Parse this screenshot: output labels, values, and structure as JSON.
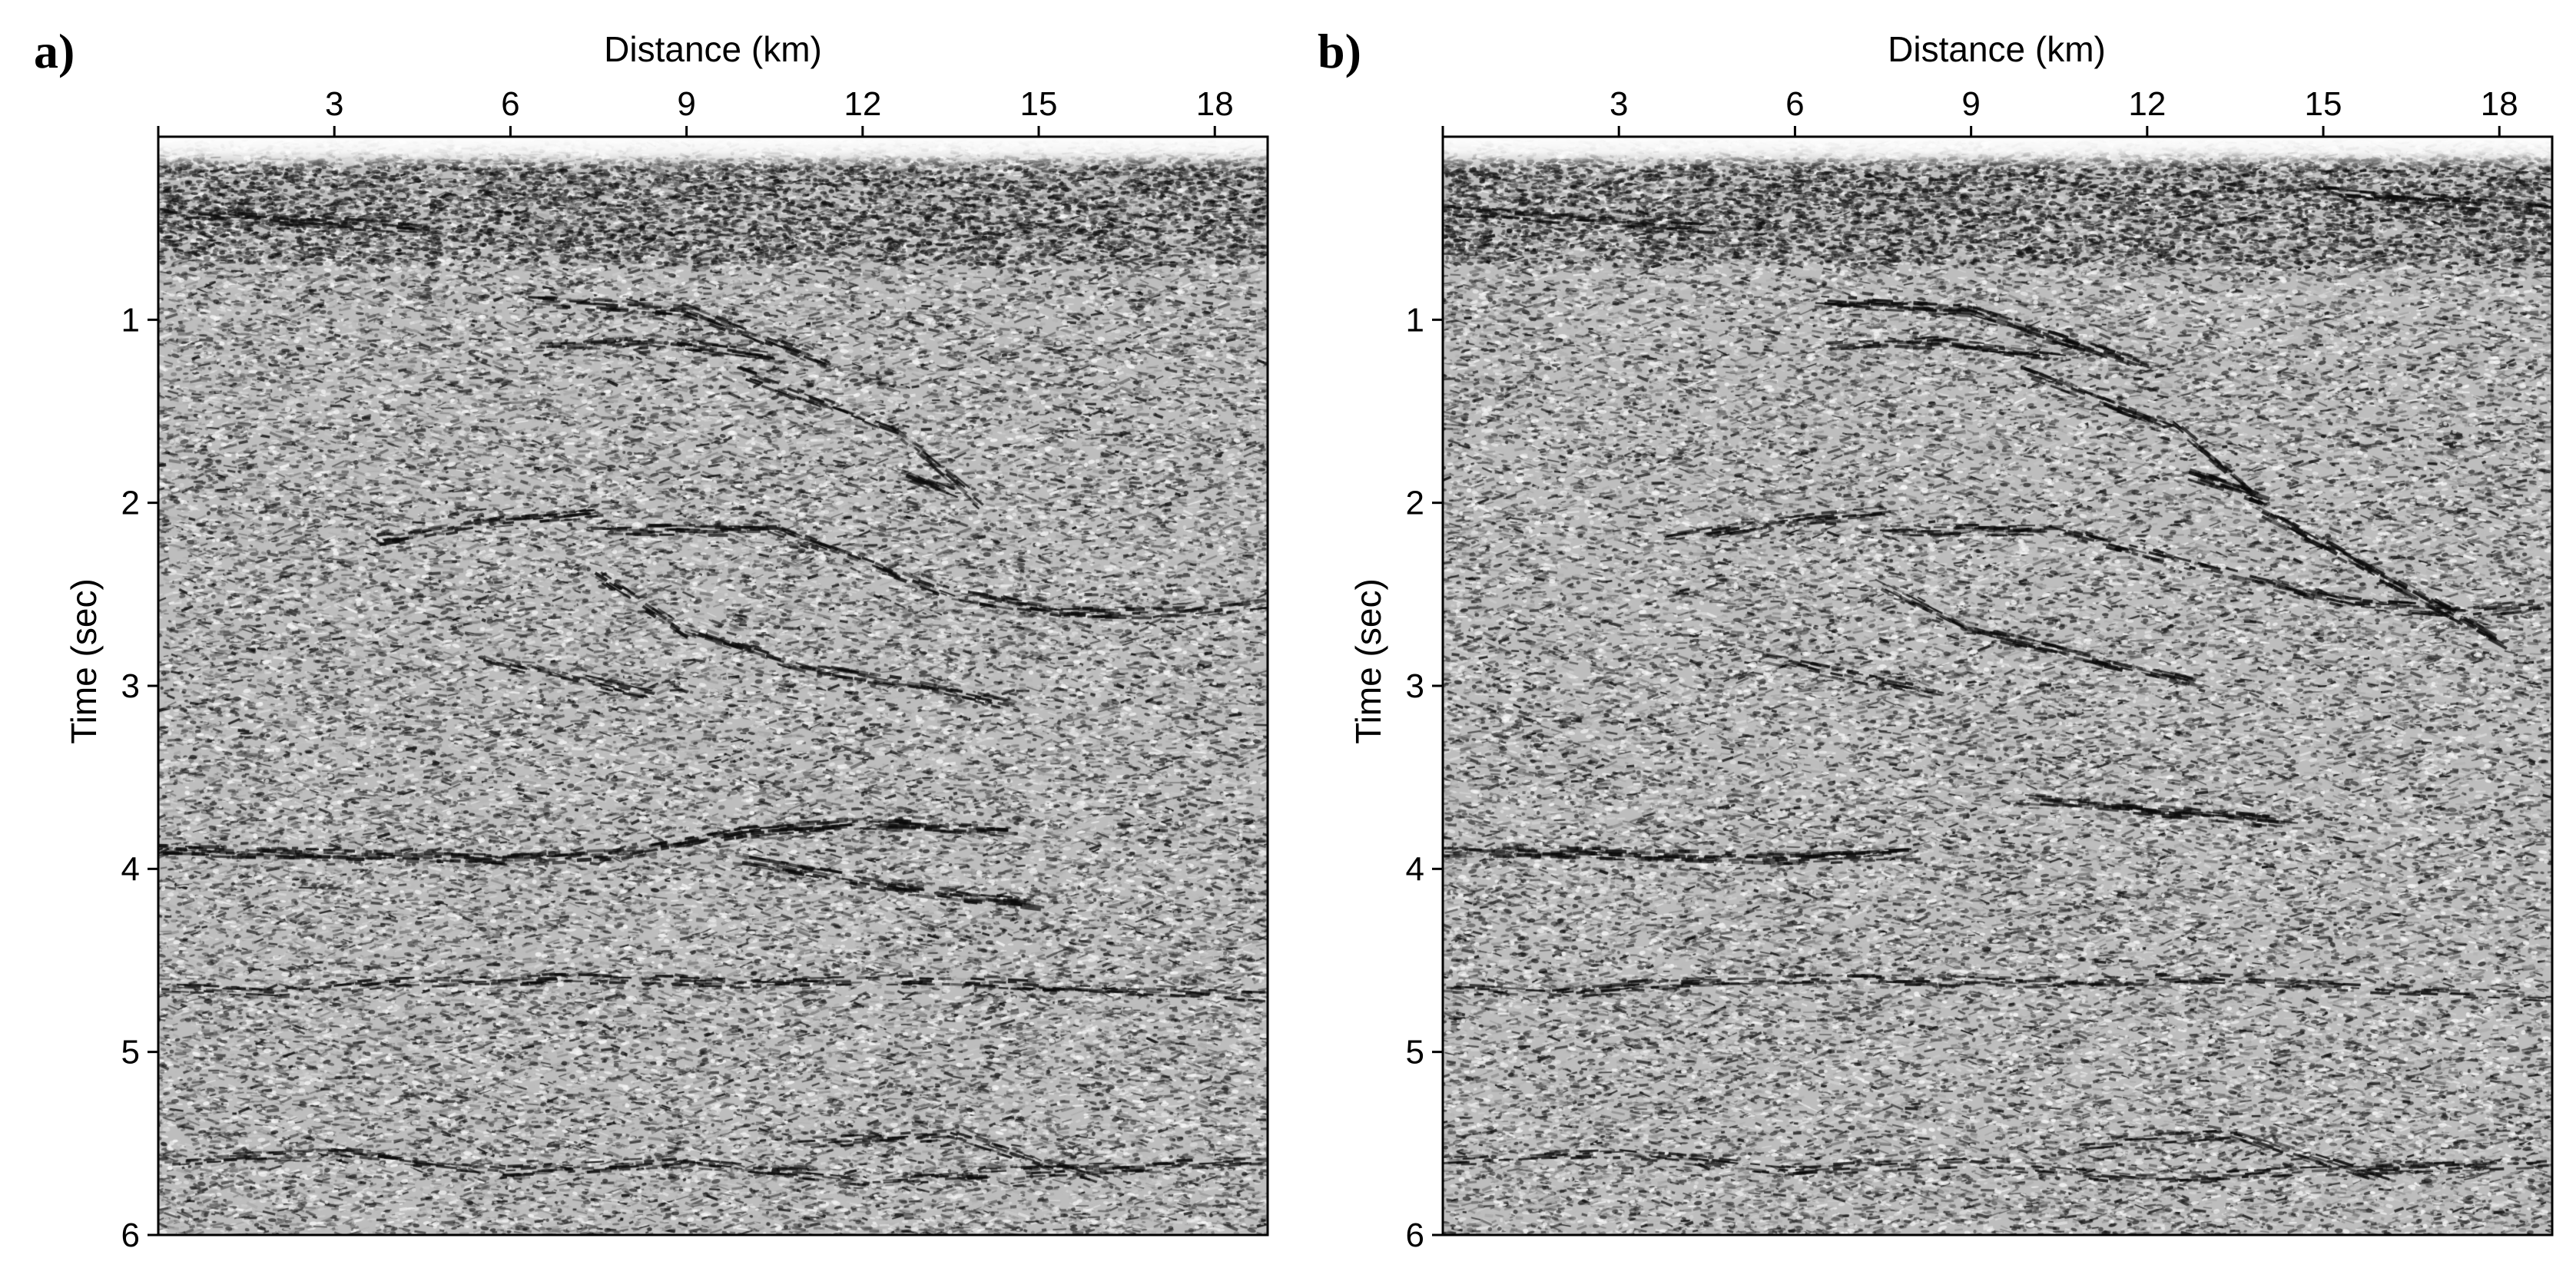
{
  "chart_data": [
    {
      "type": "heatmap",
      "panel_label": "a)",
      "xlabel": "Distance (km)",
      "ylabel": "Time (sec)",
      "x_axis_position": "top",
      "xlim": [
        0,
        18.9
      ],
      "ylim": [
        0,
        6
      ],
      "y_inverted": true,
      "x_ticks": [
        3,
        6,
        9,
        12,
        15,
        18
      ],
      "y_ticks": [
        1,
        2,
        3,
        4,
        5,
        6
      ],
      "colormap": "grayscale",
      "grid": false,
      "noise_seed": 17,
      "reflectors": [
        {
          "x": [
            6.5,
            9.0,
            11.5
          ],
          "t": [
            0.9,
            0.95,
            1.25
          ],
          "strength": 0.9
        },
        {
          "x": [
            6.5,
            8.5,
            10.5
          ],
          "t": [
            1.15,
            1.12,
            1.2
          ],
          "strength": 0.8
        },
        {
          "x": [
            10.0,
            12.5,
            14.0
          ],
          "t": [
            1.3,
            1.6,
            2.0
          ],
          "strength": 0.7
        },
        {
          "x": [
            12.8,
            13.6
          ],
          "t": [
            1.85,
            1.95
          ],
          "strength": 1.3
        },
        {
          "x": [
            7.5,
            10.5,
            13.5,
            15.5,
            17.5,
            18.9
          ],
          "t": [
            2.15,
            2.15,
            2.5,
            2.6,
            2.6,
            2.55
          ],
          "strength": 0.9
        },
        {
          "x": [
            3.8,
            5.8,
            7.5
          ],
          "t": [
            2.2,
            2.1,
            2.05
          ],
          "strength": 0.7
        },
        {
          "x": [
            7.5,
            9.0,
            11.0,
            13.0,
            14.5
          ],
          "t": [
            2.4,
            2.7,
            2.9,
            3.0,
            3.1
          ],
          "strength": 0.8
        },
        {
          "x": [
            5.5,
            7.0,
            8.5
          ],
          "t": [
            2.85,
            2.95,
            3.05
          ],
          "strength": 0.6
        },
        {
          "x": [
            0.0,
            3.0,
            6.0,
            8.0,
            10.0,
            12.0,
            14.5
          ],
          "t": [
            3.9,
            3.92,
            3.95,
            3.92,
            3.8,
            3.75,
            3.8
          ],
          "strength": 1.0
        },
        {
          "x": [
            10.0,
            12.5,
            15.0
          ],
          "t": [
            3.95,
            4.1,
            4.2
          ],
          "strength": 0.9
        },
        {
          "x": [
            0.0,
            2.0,
            4.0,
            7.0,
            10.0,
            13.0,
            16.0,
            18.9
          ],
          "t": [
            4.65,
            4.68,
            4.62,
            4.6,
            4.62,
            4.6,
            4.65,
            4.7
          ],
          "strength": 0.6
        },
        {
          "x": [
            0.0,
            3.0,
            6.0,
            9.0,
            12.0,
            15.0,
            18.9
          ],
          "t": [
            5.6,
            5.55,
            5.65,
            5.6,
            5.7,
            5.65,
            5.6
          ],
          "strength": 0.6
        },
        {
          "x": [
            11.0,
            13.5,
            16.0
          ],
          "t": [
            5.5,
            5.45,
            5.7
          ],
          "strength": 0.6
        },
        {
          "x": [
            0.0,
            2.0,
            4.5
          ],
          "t": [
            0.4,
            0.45,
            0.5
          ],
          "strength": 0.7
        }
      ]
    },
    {
      "type": "heatmap",
      "panel_label": "b)",
      "xlabel": "Distance (km)",
      "ylabel": "Time (sec)",
      "x_axis_position": "top",
      "xlim": [
        0,
        18.9
      ],
      "ylim": [
        0,
        6
      ],
      "y_inverted": true,
      "x_ticks": [
        3,
        6,
        9,
        12,
        15,
        18
      ],
      "y_ticks": [
        1,
        2,
        3,
        4,
        5,
        6
      ],
      "colormap": "grayscale",
      "grid": false,
      "noise_seed": 53,
      "reflectors": [
        {
          "x": [
            6.5,
            9.0,
            12.0
          ],
          "t": [
            0.9,
            0.95,
            1.25
          ],
          "strength": 1.0
        },
        {
          "x": [
            6.5,
            8.5,
            10.5
          ],
          "t": [
            1.15,
            1.12,
            1.2
          ],
          "strength": 0.8
        },
        {
          "x": [
            10.0,
            12.5,
            14.0
          ],
          "t": [
            1.3,
            1.6,
            2.0
          ],
          "strength": 0.8
        },
        {
          "x": [
            12.8,
            14.0
          ],
          "t": [
            1.85,
            1.98
          ],
          "strength": 1.4
        },
        {
          "x": [
            14.0,
            16.0,
            18.0
          ],
          "t": [
            2.05,
            2.4,
            2.75
          ],
          "strength": 1.0
        },
        {
          "x": [
            7.5,
            10.5,
            13.5,
            15.5,
            17.5,
            18.9
          ],
          "t": [
            2.15,
            2.15,
            2.4,
            2.55,
            2.6,
            2.55
          ],
          "strength": 0.8
        },
        {
          "x": [
            3.8,
            5.8,
            7.5
          ],
          "t": [
            2.2,
            2.1,
            2.05
          ],
          "strength": 0.7
        },
        {
          "x": [
            7.5,
            9.0,
            11.0,
            13.0
          ],
          "t": [
            2.45,
            2.7,
            2.85,
            3.0
          ],
          "strength": 0.9
        },
        {
          "x": [
            5.5,
            7.0,
            8.5
          ],
          "t": [
            2.85,
            2.95,
            3.05
          ],
          "strength": 0.6
        },
        {
          "x": [
            0.0,
            3.0,
            6.0,
            8.0
          ],
          "t": [
            3.9,
            3.92,
            3.95,
            3.92
          ],
          "strength": 1.0
        },
        {
          "x": [
            10.0,
            12.0,
            14.5
          ],
          "t": [
            3.62,
            3.68,
            3.75
          ],
          "strength": 1.1
        },
        {
          "x": [
            0.0,
            2.0,
            4.0,
            7.0,
            10.0,
            13.0,
            16.0,
            18.9
          ],
          "t": [
            4.65,
            4.68,
            4.62,
            4.6,
            4.62,
            4.6,
            4.65,
            4.7
          ],
          "strength": 0.6
        },
        {
          "x": [
            0.0,
            3.0,
            6.0,
            9.0,
            12.0,
            15.0,
            18.9
          ],
          "t": [
            5.6,
            5.55,
            5.65,
            5.6,
            5.7,
            5.65,
            5.6
          ],
          "strength": 0.6
        },
        {
          "x": [
            11.0,
            13.5,
            16.0
          ],
          "t": [
            5.5,
            5.45,
            5.7
          ],
          "strength": 0.6
        },
        {
          "x": [
            15.0,
            17.0,
            18.9
          ],
          "t": [
            0.3,
            0.35,
            0.4
          ],
          "strength": 0.8
        },
        {
          "x": [
            0.0,
            2.0,
            4.5
          ],
          "t": [
            0.4,
            0.45,
            0.5
          ],
          "strength": 0.7
        }
      ]
    }
  ]
}
